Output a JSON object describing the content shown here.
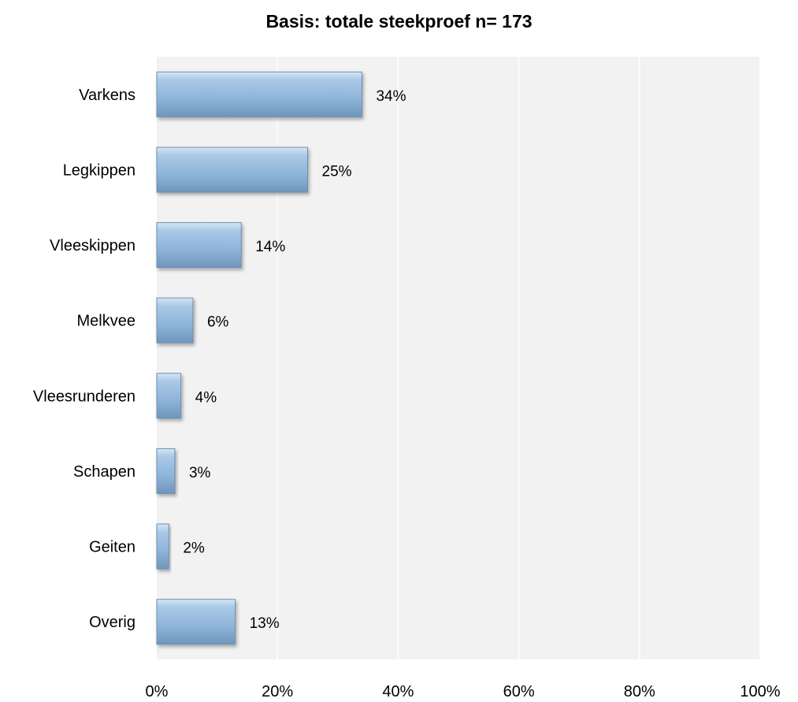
{
  "chart_data": {
    "type": "bar",
    "orientation": "horizontal",
    "title": "Basis: totale steekproef n= 173",
    "categories": [
      "Varkens",
      "Legkippen",
      "Vleeskippen",
      "Melkvee",
      "Vleesrunderen",
      "Schapen",
      "Geiten",
      "Overig"
    ],
    "values": [
      34,
      25,
      14,
      6,
      4,
      3,
      2,
      13
    ],
    "data_labels": [
      "34%",
      "25%",
      "14%",
      "6%",
      "4%",
      "3%",
      "2%",
      "13%"
    ],
    "xlim": [
      0,
      100
    ],
    "x_ticks": [
      0,
      20,
      40,
      60,
      80,
      100
    ],
    "x_tick_labels": [
      "0%",
      "20%",
      "40%",
      "60%",
      "80%",
      "100%"
    ],
    "xlabel": "",
    "ylabel": "",
    "grid": true,
    "legend": "none",
    "colors": {
      "bar_fill": "#8EB4D9",
      "bar_stroke": "#6E8FB0",
      "plot_background": "#F2F2F2",
      "gridline": "#FFFFFF"
    }
  }
}
